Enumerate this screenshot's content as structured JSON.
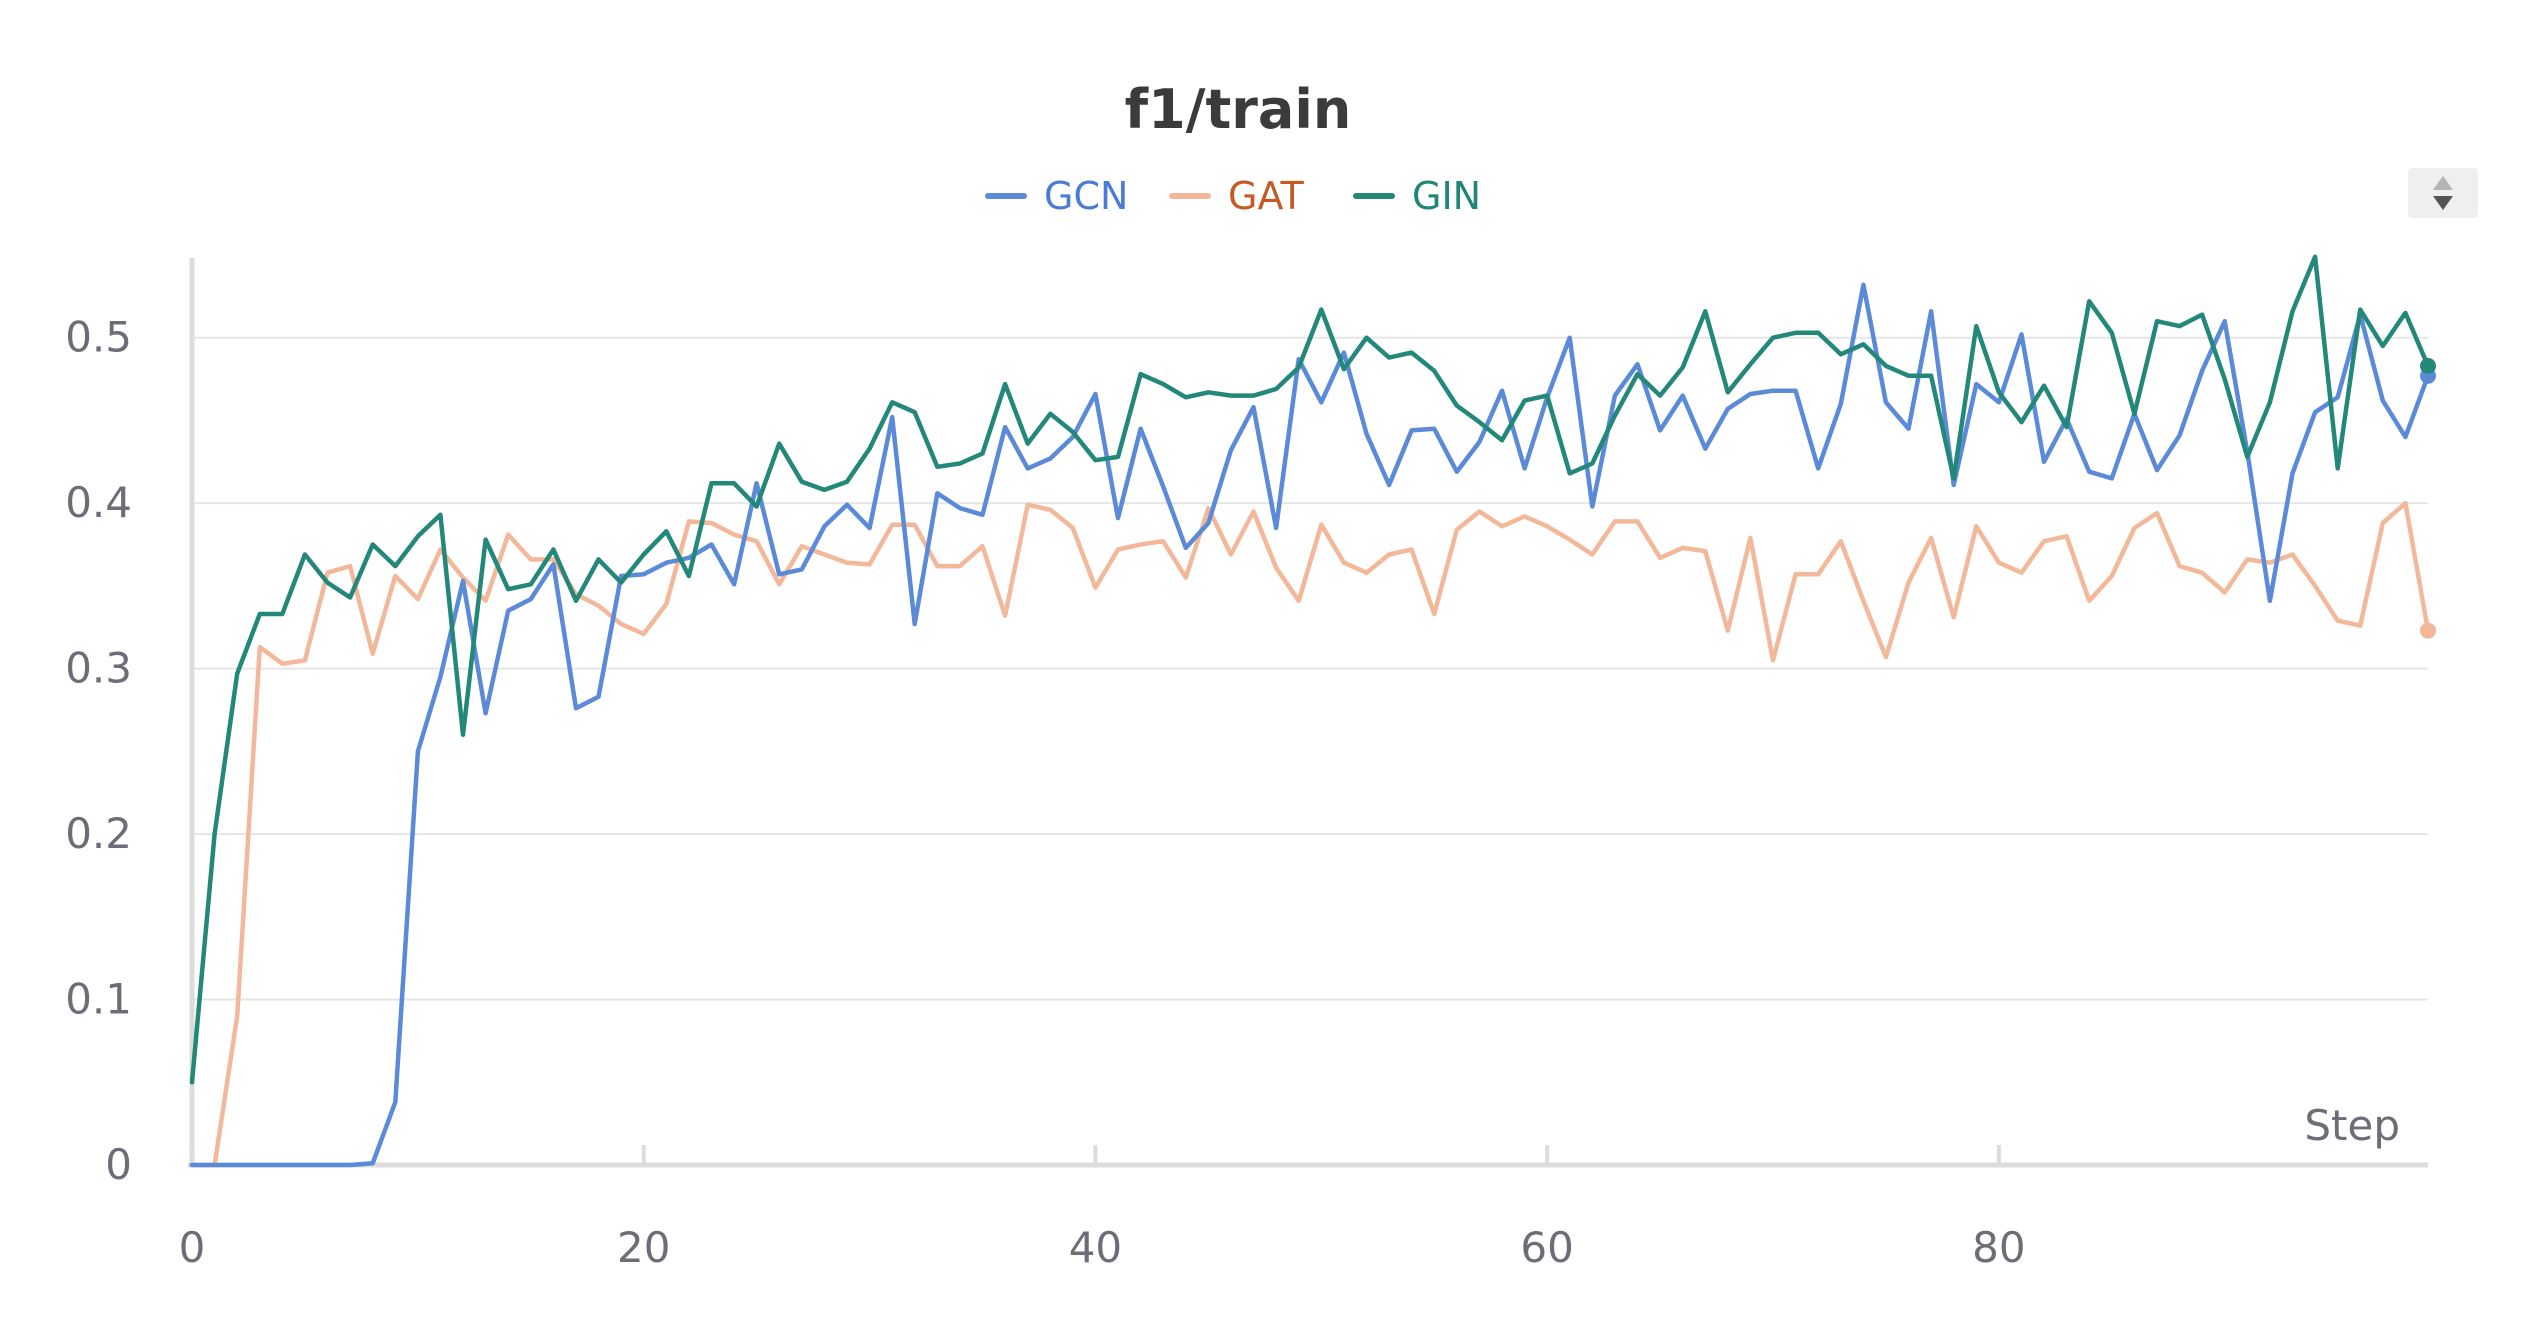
{
  "chart_data": {
    "type": "line",
    "title": "f1/train",
    "xlabel": "Step",
    "ylabel": "",
    "xlim": [
      0,
      99
    ],
    "ylim": [
      0,
      0.55
    ],
    "xticks": [
      0,
      20,
      40,
      60,
      80
    ],
    "yticks": [
      0,
      0.1,
      0.2,
      0.3,
      0.4,
      0.5
    ],
    "xtick_labels": [
      "0",
      "20",
      "40",
      "60",
      "80"
    ],
    "ytick_labels": [
      "0",
      "0.1",
      "0.2",
      "0.3",
      "0.4",
      "0.5"
    ],
    "grid": true,
    "legend_position": "top-center",
    "series": [
      {
        "name": "GCN",
        "color": "#5b8ad8",
        "values": [
          0,
          0,
          0,
          0,
          0,
          0,
          0,
          0,
          0.001,
          0.038,
          0.25,
          0.295,
          0.353,
          0.273,
          0.335,
          0.342,
          0.363,
          0.276,
          0.283,
          0.356,
          0.357,
          0.364,
          0.367,
          0.375,
          0.351,
          0.412,
          0.357,
          0.36,
          0.386,
          0.399,
          0.385,
          0.452,
          0.327,
          0.406,
          0.397,
          0.393,
          0.446,
          0.421,
          0.427,
          0.44,
          0.466,
          0.391,
          0.445,
          0.41,
          0.373,
          0.388,
          0.432,
          0.458,
          0.385,
          0.487,
          0.461,
          0.491,
          0.442,
          0.411,
          0.444,
          0.445,
          0.419,
          0.437,
          0.468,
          0.421,
          0.464,
          0.5,
          0.398,
          0.465,
          0.484,
          0.444,
          0.465,
          0.433,
          0.457,
          0.466,
          0.468,
          0.468,
          0.421,
          0.46,
          0.532,
          0.461,
          0.445,
          0.516,
          0.411,
          0.472,
          0.461,
          0.502,
          0.425,
          0.451,
          0.419,
          0.415,
          0.454,
          0.42,
          0.441,
          0.48,
          0.51,
          0.431,
          0.341,
          0.418,
          0.455,
          0.464,
          0.514,
          0.462,
          0.44,
          0.477
        ]
      },
      {
        "name": "GAT",
        "color": "#f2b899",
        "values": [
          0,
          0,
          0.09,
          0.313,
          0.303,
          0.305,
          0.358,
          0.362,
          0.309,
          0.356,
          0.342,
          0.372,
          0.355,
          0.341,
          0.381,
          0.366,
          0.366,
          0.345,
          0.338,
          0.327,
          0.321,
          0.339,
          0.389,
          0.388,
          0.381,
          0.377,
          0.351,
          0.374,
          0.369,
          0.364,
          0.363,
          0.387,
          0.387,
          0.362,
          0.362,
          0.374,
          0.332,
          0.399,
          0.396,
          0.385,
          0.349,
          0.372,
          0.375,
          0.377,
          0.355,
          0.397,
          0.369,
          0.395,
          0.361,
          0.341,
          0.387,
          0.364,
          0.358,
          0.369,
          0.372,
          0.333,
          0.384,
          0.395,
          0.386,
          0.392,
          0.386,
          0.378,
          0.369,
          0.389,
          0.389,
          0.367,
          0.373,
          0.371,
          0.323,
          0.379,
          0.305,
          0.357,
          0.357,
          0.377,
          0.341,
          0.307,
          0.352,
          0.379,
          0.331,
          0.386,
          0.364,
          0.358,
          0.377,
          0.38,
          0.341,
          0.356,
          0.385,
          0.394,
          0.362,
          0.358,
          0.346,
          0.366,
          0.364,
          0.369,
          0.35,
          0.329,
          0.326,
          0.388,
          0.4,
          0.323
        ]
      },
      {
        "name": "GIN",
        "color": "#23877a",
        "values": [
          0.05,
          0.2,
          0.297,
          0.333,
          0.333,
          0.369,
          0.352,
          0.343,
          0.375,
          0.362,
          0.38,
          0.393,
          0.26,
          0.378,
          0.348,
          0.351,
          0.372,
          0.341,
          0.366,
          0.352,
          0.369,
          0.383,
          0.356,
          0.412,
          0.412,
          0.398,
          0.436,
          0.413,
          0.408,
          0.413,
          0.433,
          0.461,
          0.455,
          0.422,
          0.424,
          0.43,
          0.472,
          0.436,
          0.454,
          0.443,
          0.426,
          0.428,
          0.478,
          0.472,
          0.464,
          0.467,
          0.465,
          0.465,
          0.469,
          0.482,
          0.517,
          0.481,
          0.5,
          0.488,
          0.491,
          0.48,
          0.459,
          0.449,
          0.438,
          0.462,
          0.465,
          0.418,
          0.424,
          0.453,
          0.478,
          0.465,
          0.482,
          0.516,
          0.467,
          0.484,
          0.5,
          0.503,
          0.503,
          0.49,
          0.496,
          0.483,
          0.477,
          0.477,
          0.415,
          0.507,
          0.467,
          0.449,
          0.471,
          0.446,
          0.522,
          0.503,
          0.454,
          0.51,
          0.507,
          0.514,
          0.475,
          0.428,
          0.461,
          0.516,
          0.549,
          0.421,
          0.517,
          0.495,
          0.515,
          0.483
        ]
      }
    ]
  },
  "controls": {
    "sort_icon": "sort-up-down-icon"
  }
}
